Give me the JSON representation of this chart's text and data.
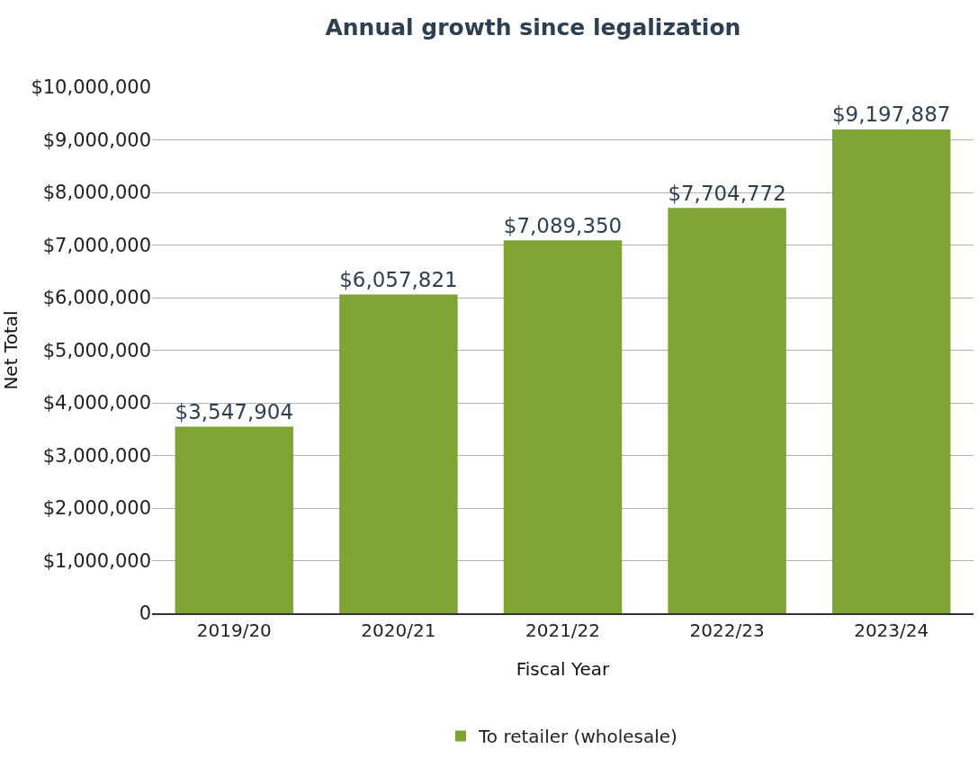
{
  "chart_data": {
    "type": "bar",
    "title": "Annual growth since legalization",
    "xlabel": "Fiscal Year",
    "ylabel": "Net Total",
    "categories": [
      "2019/20",
      "2020/21",
      "2021/22",
      "2022/23",
      "2023/24"
    ],
    "series": [
      {
        "name": "To retailer (wholesale)",
        "color": "#7ea434",
        "values": [
          3547904,
          6057821,
          7089350,
          7704772,
          9197887
        ],
        "value_labels": [
          "$3,547,904",
          "$6,057,821",
          "$7,089,350",
          "$7,704,772",
          "$9,197,887"
        ]
      }
    ],
    "ylim": [
      0,
      10000000
    ],
    "yticks": [
      {
        "value": 0,
        "label": "0"
      },
      {
        "value": 1000000,
        "label": "$1,000,000"
      },
      {
        "value": 2000000,
        "label": "$2,000,000"
      },
      {
        "value": 3000000,
        "label": "$3,000,000"
      },
      {
        "value": 4000000,
        "label": "$4,000,000"
      },
      {
        "value": 5000000,
        "label": "$5,000,000"
      },
      {
        "value": 6000000,
        "label": "$6,000,000"
      },
      {
        "value": 7000000,
        "label": "$7,000,000"
      },
      {
        "value": 8000000,
        "label": "$8,000,000"
      },
      {
        "value": 9000000,
        "label": "$9,000,000"
      },
      {
        "value": 10000000,
        "label": "$10,000,000"
      }
    ],
    "grid": "y",
    "legend": "bottom"
  }
}
